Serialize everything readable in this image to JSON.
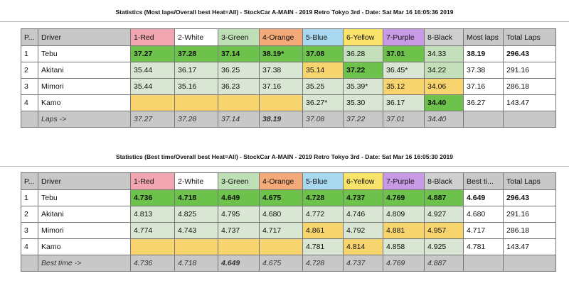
{
  "tables": [
    {
      "title": "Statistics (Most laps/Overall best Heat=All) - StockCar A-MAIN - 2019 Retro Tokyo 3rd - Date: Sat Mar 16 16:05:36 2019",
      "headers": [
        "P...",
        "Driver",
        "1-Red",
        "2-White",
        "3-Green",
        "4-Orange",
        "5-Blue",
        "6-Yellow",
        "7-Purple",
        "8-Black",
        "Most laps",
        "Total Laps"
      ],
      "rows": [
        {
          "pos": "1",
          "driver": "Tebu",
          "cells": [
            "37.27",
            "37.28",
            "37.14",
            "38.19*",
            "37.08",
            "36.28",
            "37.01",
            "34.33"
          ],
          "extra": "38.19",
          "total": "296.43"
        },
        {
          "pos": "2",
          "driver": "Akitani",
          "cells": [
            "35.44",
            "36.17",
            "36.25",
            "37.38",
            "35.14",
            "37.22",
            "36.45*",
            "34.22"
          ],
          "extra": "37.38",
          "total": "291.16"
        },
        {
          "pos": "3",
          "driver": "Mimori",
          "cells": [
            "35.44",
            "35.16",
            "36.23",
            "37.16",
            "35.25",
            "35.39*",
            "35.12",
            "34.06"
          ],
          "extra": "37.16",
          "total": "286.18"
        },
        {
          "pos": "4",
          "driver": "Kamo",
          "cells": [
            "",
            "",
            "",
            "",
            "36.27*",
            "35.30",
            "36.17",
            "34.40"
          ],
          "extra": "36.27",
          "total": "143.47"
        }
      ],
      "footer": {
        "label": "Laps ->",
        "cells": [
          "37.27",
          "37.28",
          "37.14",
          "38.19",
          "37.08",
          "37.22",
          "37.01",
          "34.40"
        ]
      }
    },
    {
      "title": "Statistics (Best time/Overall best Heat=All) - StockCar A-MAIN - 2019 Retro Tokyo 3rd - Date: Sat Mar 16 16:05:30 2019",
      "headers": [
        "P...",
        "Driver",
        "1-Red",
        "2-White",
        "3-Green",
        "4-Orange",
        "5-Blue",
        "6-Yellow",
        "7-Purple",
        "8-Black",
        "Best ti...",
        "Total Laps"
      ],
      "rows": [
        {
          "pos": "1",
          "driver": "Tebu",
          "cells": [
            "4.736",
            "4.718",
            "4.649",
            "4.675",
            "4.728",
            "4.737",
            "4.769",
            "4.887"
          ],
          "extra": "4.649",
          "total": "296.43"
        },
        {
          "pos": "2",
          "driver": "Akitani",
          "cells": [
            "4.813",
            "4.825",
            "4.795",
            "4.680",
            "4.772",
            "4.746",
            "4.809",
            "4.927"
          ],
          "extra": "4.680",
          "total": "291.16"
        },
        {
          "pos": "3",
          "driver": "Mimori",
          "cells": [
            "4.774",
            "4.743",
            "4.737",
            "4.717",
            "4.861",
            "4.792",
            "4.881",
            "4.957"
          ],
          "extra": "4.717",
          "total": "286.18"
        },
        {
          "pos": "4",
          "driver": "Kamo",
          "cells": [
            "",
            "",
            "",
            "",
            "4.781",
            "4.814",
            "4.858",
            "4.925"
          ],
          "extra": "4.781",
          "total": "143.47"
        }
      ],
      "footer": {
        "label": "Best time ->",
        "cells": [
          "4.736",
          "4.718",
          "4.649",
          "4.675",
          "4.728",
          "4.737",
          "4.769",
          "4.887"
        ]
      }
    }
  ]
}
